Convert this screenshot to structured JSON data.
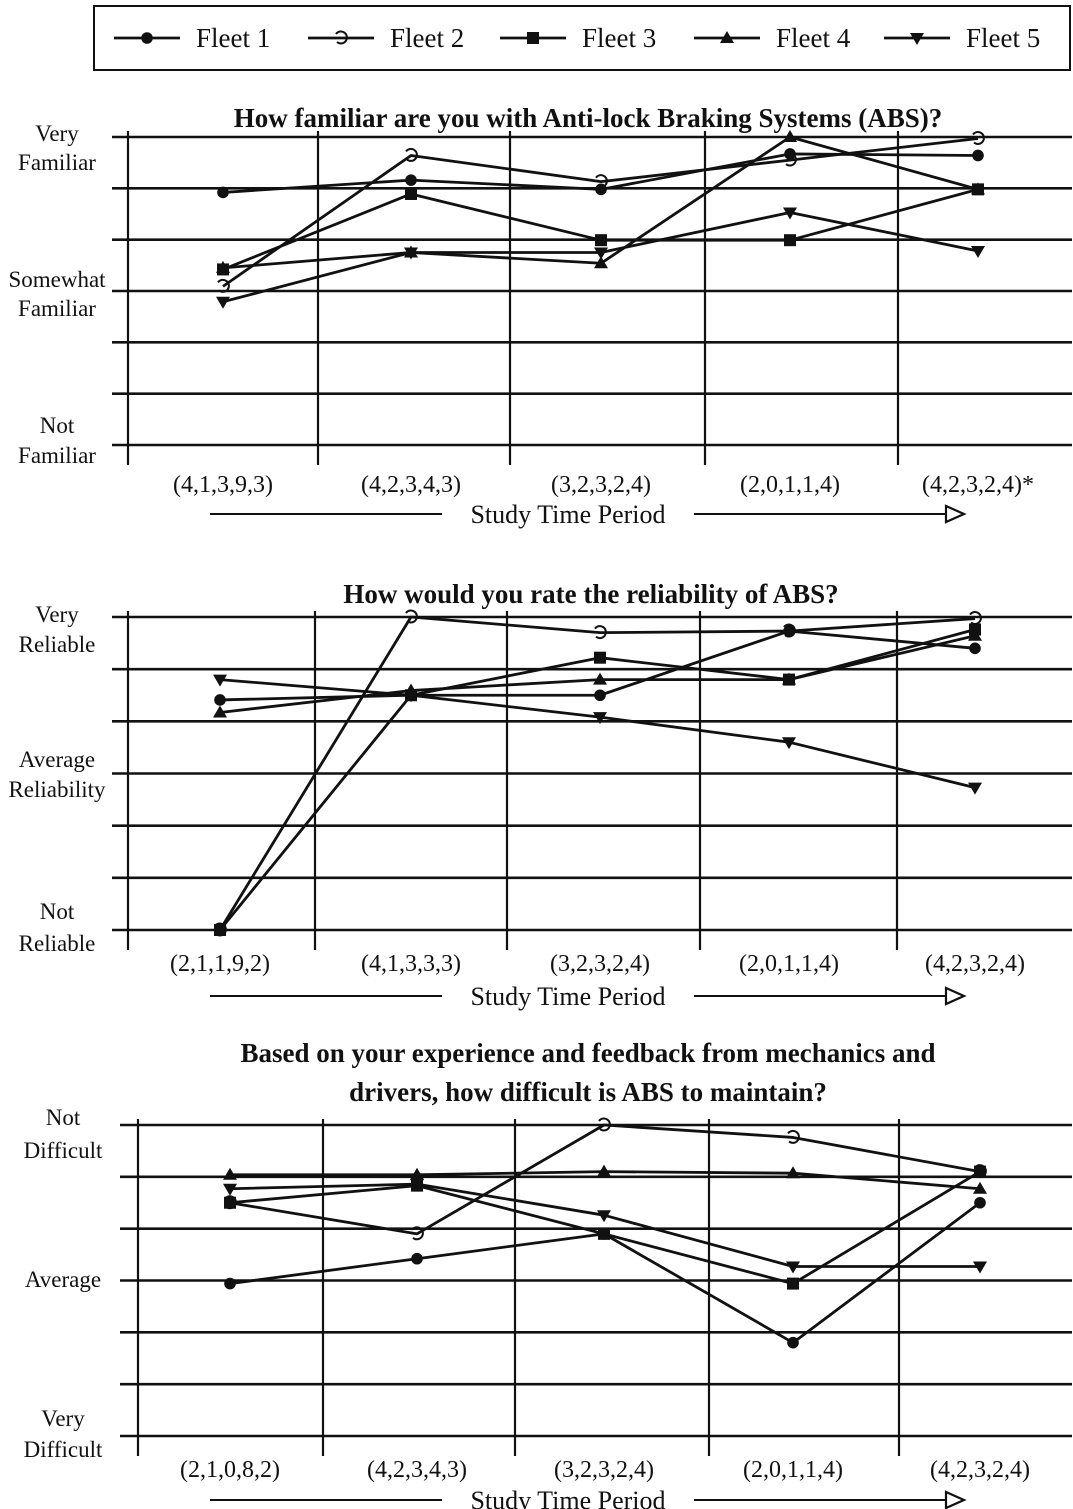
{
  "legend": [
    {
      "name": "Fleet 1",
      "marker": "circle"
    },
    {
      "name": "Fleet 2",
      "marker": "open-circle"
    },
    {
      "name": "Fleet 3",
      "marker": "square"
    },
    {
      "name": "Fleet 4",
      "marker": "triangle-up"
    },
    {
      "name": "Fleet 5",
      "marker": "triangle-down"
    }
  ],
  "xaxis_label": "Study Time Period",
  "chart_data": [
    {
      "type": "line",
      "title": "How familiar are you with Anti-lock Braking Systems (ABS)?",
      "xlabel": "Study Time Period",
      "categories": [
        "(4,1,3,9,3)",
        "(4,2,3,4,3)",
        "(3,2,3,2,4)",
        "(2,0,1,1,4)",
        "(4,2,3,2,4)*"
      ],
      "y_labels": {
        "top": "Very Familiar",
        "middle": "Somewhat Familiar",
        "bottom": "Not Familiar"
      },
      "ylim": [
        1,
        3
      ],
      "series": [
        {
          "name": "Fleet 1",
          "values": [
            2.64,
            2.72,
            2.66,
            2.89,
            2.88
          ]
        },
        {
          "name": "Fleet 2",
          "values": [
            2.03,
            2.88,
            2.71,
            2.85,
            2.99
          ]
        },
        {
          "name": "Fleet 3",
          "values": [
            2.14,
            2.63,
            2.33,
            2.33,
            2.66
          ]
        },
        {
          "name": "Fleet 4",
          "values": [
            2.15,
            2.25,
            2.18,
            3.0,
            2.66
          ]
        },
        {
          "name": "Fleet 5",
          "values": [
            1.93,
            2.25,
            2.25,
            2.51,
            2.26
          ]
        }
      ]
    },
    {
      "type": "line",
      "title": "How would you rate the reliability of ABS?",
      "xlabel": "Study Time Period",
      "categories": [
        "(2,1,1,9,2)",
        "(4,1,3,3,3)",
        "(3,2,3,2,4)",
        "(2,0,1,1,4)",
        "(4,2,3,2,4)"
      ],
      "y_labels": {
        "top": "Very Reliable",
        "middle": "Average Reliability",
        "bottom": "Not Reliable"
      },
      "ylim": [
        1,
        3
      ],
      "series": [
        {
          "name": "Fleet 1",
          "values": [
            2.47,
            2.5,
            2.5,
            2.91,
            2.8
          ]
        },
        {
          "name": "Fleet 2",
          "values": [
            1.0,
            3.0,
            2.9,
            2.91,
            2.99
          ]
        },
        {
          "name": "Fleet 3",
          "values": [
            1.0,
            2.5,
            2.74,
            2.6,
            2.92
          ]
        },
        {
          "name": "Fleet 4",
          "values": [
            2.39,
            2.53,
            2.6,
            2.6,
            2.88
          ]
        },
        {
          "name": "Fleet 5",
          "values": [
            2.6,
            2.5,
            2.36,
            2.2,
            1.91
          ]
        }
      ]
    },
    {
      "type": "line",
      "title": "Based on your experience and feedback from mechanics and drivers, how difficult is ABS to maintain?",
      "title_lines": [
        "Based on your experience and feedback from mechanics and",
        "drivers, how difficult is ABS to maintain?"
      ],
      "xlabel": "Study Time Period",
      "categories": [
        "(2,1,0,8,2)",
        "(4,2,3,4,3)",
        "(3,2,3,2,4)",
        "(2,0,1,1,4)",
        "(4,2,3,2,4)"
      ],
      "y_labels": {
        "top": "Not Difficult",
        "middle": "Average",
        "bottom": "Very Difficult"
      },
      "ylim": [
        1,
        3
      ],
      "series": [
        {
          "name": "Fleet 1",
          "values": [
            1.98,
            2.14,
            2.3,
            1.6,
            2.5
          ]
        },
        {
          "name": "Fleet 2",
          "values": [
            2.5,
            2.3,
            3.0,
            2.92,
            2.7
          ]
        },
        {
          "name": "Fleet 3",
          "values": [
            2.5,
            2.61,
            2.3,
            1.98,
            2.7
          ]
        },
        {
          "name": "Fleet 4",
          "values": [
            2.68,
            2.68,
            2.7,
            2.69,
            2.59
          ]
        },
        {
          "name": "Fleet 5",
          "values": [
            2.59,
            2.62,
            2.42,
            2.09,
            2.09
          ]
        }
      ]
    }
  ]
}
